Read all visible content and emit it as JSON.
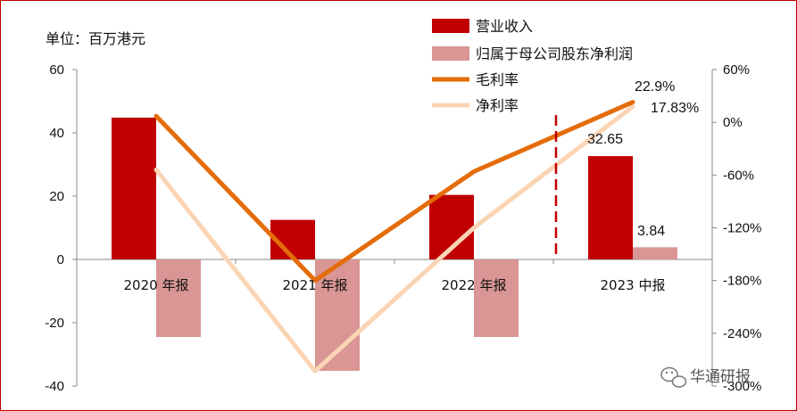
{
  "chart_data": {
    "type": "bar",
    "unit_label": "单位：百万港元",
    "categories": [
      "2020 年报",
      "2021 年报",
      "2022 年报",
      "2023 中报"
    ],
    "series": [
      {
        "name": "营业收入",
        "kind": "bar",
        "axis": "left",
        "color": "#c00000",
        "values": [
          44.8,
          12.5,
          20.4,
          32.65
        ]
      },
      {
        "name": "归属于母公司股东净利润",
        "kind": "bar",
        "axis": "left",
        "color": "#d99694",
        "values": [
          -24.5,
          -35.2,
          -24.5,
          3.84
        ]
      },
      {
        "name": "毛利率",
        "kind": "line",
        "axis": "right",
        "color": "#e46c0a",
        "values": [
          7,
          -180,
          -56,
          22.9
        ]
      },
      {
        "name": "净利率",
        "kind": "line",
        "axis": "right",
        "color": "#fbd4b4",
        "values": [
          -54,
          -283,
          -120,
          17.83
        ]
      }
    ],
    "y_left": {
      "min": -40,
      "max": 60,
      "ticks": [
        "60",
        "40",
        "20",
        "0",
        "-20",
        "-40"
      ]
    },
    "y_right": {
      "min": -300,
      "max": 60,
      "ticks": [
        "60%",
        "0%",
        "-60%",
        "-120%",
        "-180%",
        "-240%",
        "-300%"
      ]
    },
    "data_labels": {
      "revenue_2023": "32.65",
      "profit_2023": "3.84",
      "gross_margin_2023": "22.9%",
      "net_margin_2023": "17.83%"
    },
    "legend_placement": "top-right",
    "separator_before_last": true
  },
  "watermark": "华通研报"
}
